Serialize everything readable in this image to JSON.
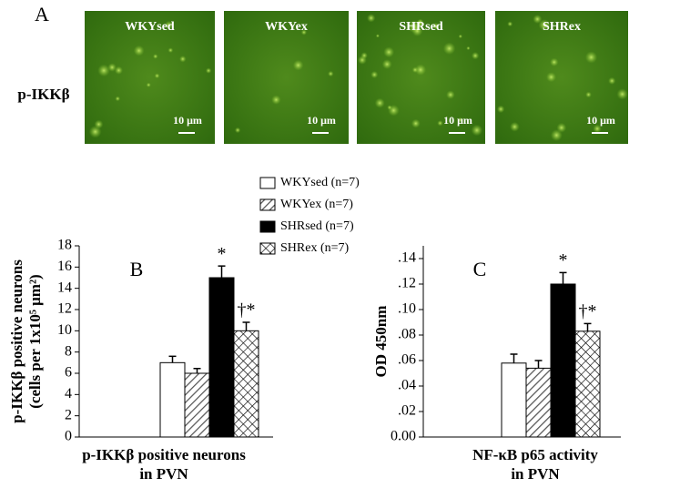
{
  "panel_a": {
    "panel_label": "A",
    "row_label": "p-IKKβ",
    "images": [
      {
        "label": "WKYsed",
        "scale": "10 μm"
      },
      {
        "label": "WKYex",
        "scale": "10 μm"
      },
      {
        "label": "SHRsed",
        "scale": "10 μm"
      },
      {
        "label": "SHRex",
        "scale": "10 μm"
      }
    ]
  },
  "chart_data": [
    {
      "type": "bar",
      "panel_label": "B",
      "y_label": [
        "p-IKKβ positive neurons",
        "(cells per 1x10⁵ μm²)"
      ],
      "x_label": [
        "p-IKKβ positive neurons",
        "in PVN"
      ],
      "ylim": [
        0,
        18
      ],
      "yticks": [
        0,
        2,
        4,
        6,
        8,
        10,
        12,
        14,
        16,
        18
      ],
      "series": [
        {
          "name": "WKYsed (n=7)",
          "color": "#ffffff",
          "pattern": "solid",
          "values": [
            7
          ],
          "errors": [
            0.6
          ]
        },
        {
          "name": "WKYex (n=7)",
          "color": "#ffffff",
          "pattern": "hatch",
          "values": [
            6
          ],
          "errors": [
            0.45
          ]
        },
        {
          "name": "SHRsed (n=7)",
          "color": "#000000",
          "pattern": "solid",
          "values": [
            15
          ],
          "errors": [
            1.1
          ],
          "annotation": "*"
        },
        {
          "name": "SHRex (n=7)",
          "color": "#ffffff",
          "pattern": "cross",
          "values": [
            10
          ],
          "errors": [
            0.8
          ],
          "annotation": "†*"
        }
      ]
    },
    {
      "type": "bar",
      "panel_label": "C",
      "y_label": [
        "OD 450nm"
      ],
      "x_label": [
        "NF-κB p65 activity",
        "in PVN"
      ],
      "ylim": [
        0,
        0.15
      ],
      "yticks": [
        {
          "value": 0,
          "label": "0.00"
        },
        {
          "value": 0.02,
          "label": ".02"
        },
        {
          "value": 0.04,
          "label": ".04"
        },
        {
          "value": 0.06,
          "label": ".06"
        },
        {
          "value": 0.08,
          "label": ".08"
        },
        {
          "value": 0.1,
          "label": ".10"
        },
        {
          "value": 0.12,
          "label": ".12"
        },
        {
          "value": 0.14,
          "label": ".14"
        }
      ],
      "series": [
        {
          "name": "WKYsed (n=7)",
          "color": "#ffffff",
          "pattern": "solid",
          "values": [
            0.058
          ],
          "errors": [
            0.007
          ]
        },
        {
          "name": "WKYex (n=7)",
          "color": "#ffffff",
          "pattern": "hatch",
          "values": [
            0.054
          ],
          "errors": [
            0.006
          ]
        },
        {
          "name": "SHRsed (n=7)",
          "color": "#000000",
          "pattern": "solid",
          "values": [
            0.12
          ],
          "errors": [
            0.009
          ],
          "annotation": "*"
        },
        {
          "name": "SHRex (n=7)",
          "color": "#ffffff",
          "pattern": "cross",
          "values": [
            0.083
          ],
          "errors": [
            0.006
          ],
          "annotation": "†*"
        }
      ]
    }
  ]
}
